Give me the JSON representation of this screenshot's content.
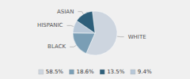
{
  "chart_data": {
    "type": "pie",
    "categories": [
      "WHITE",
      "BLACK",
      "HISPANIC",
      "ASIAN"
    ],
    "values": [
      58.5,
      18.6,
      9.4,
      13.5
    ],
    "colors": [
      "#cdd5df",
      "#7a9eb5",
      "#b8c8d8",
      "#2e5f7a"
    ],
    "legend": "bottom",
    "legend_labels": [
      "58.5%",
      "18.6%",
      "13.5%",
      "9.4%"
    ],
    "legend_colors": [
      "#cdd5df",
      "#7a9eb5",
      "#2e5f7a",
      "#b8c8d8"
    ],
    "background_color": "#f0f0f0"
  }
}
